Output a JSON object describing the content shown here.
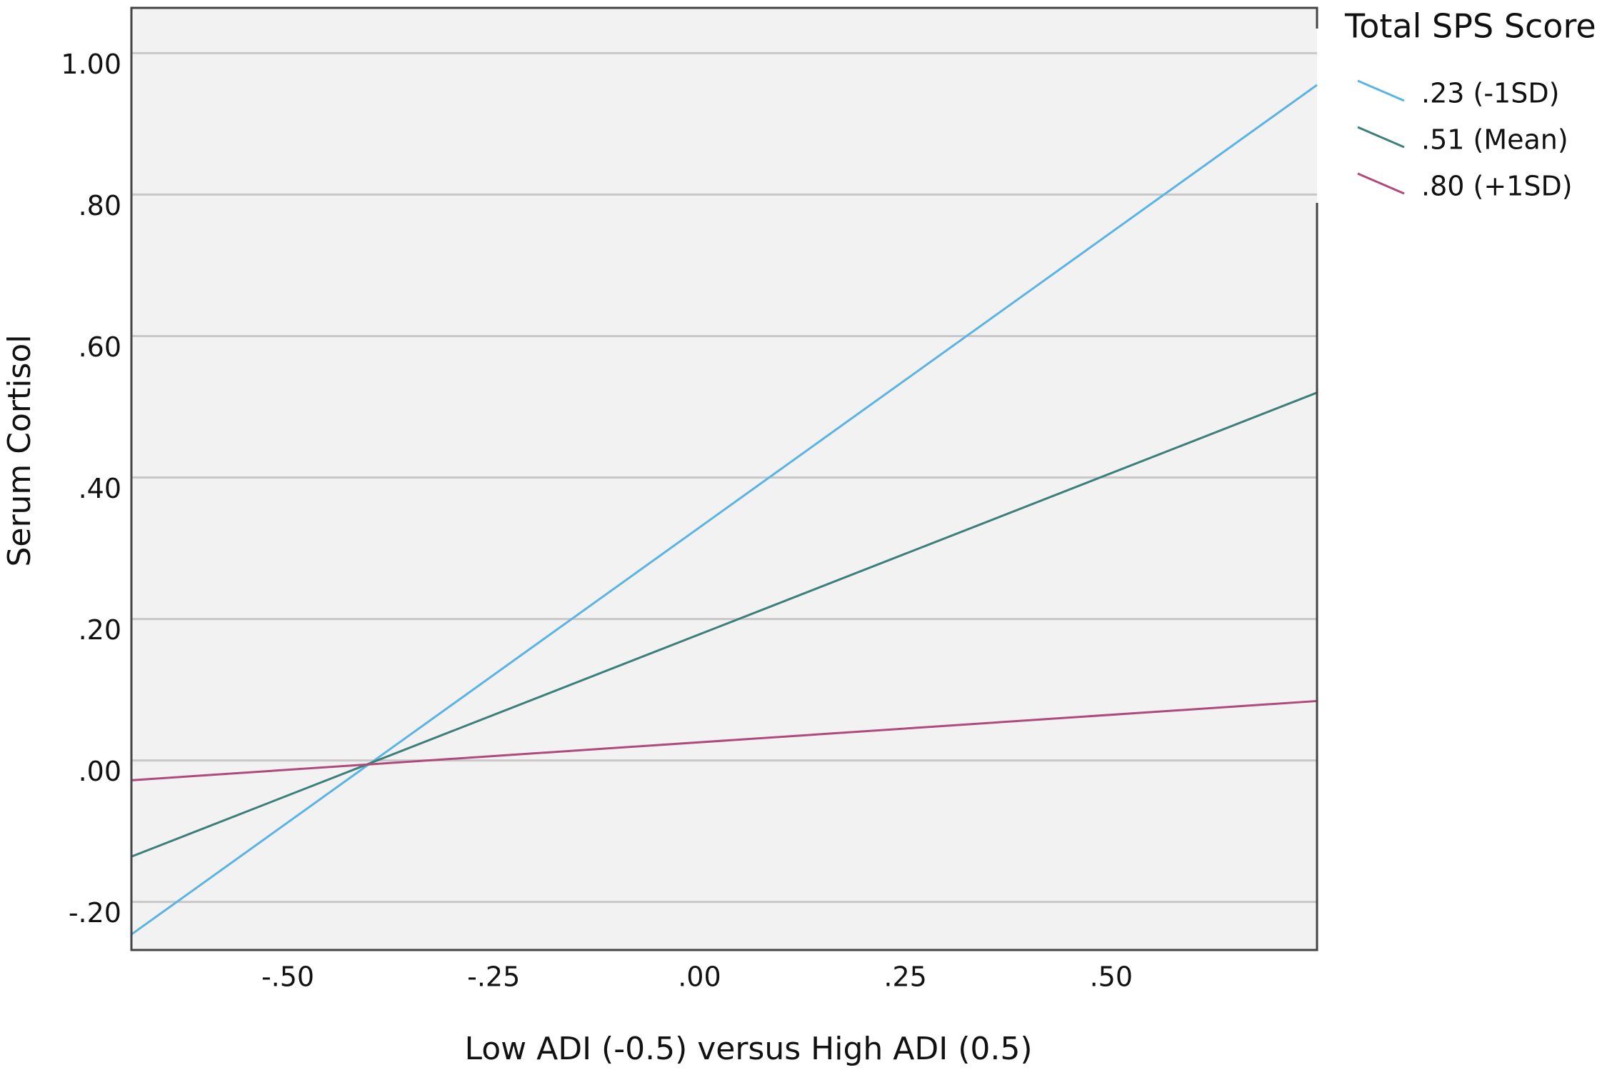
{
  "chart_data": {
    "type": "line",
    "x_label": "Low ADI (-0.5) versus High ADI (0.5)",
    "y_label": "Serum Cortisol",
    "legend_title": "Total SPS Score",
    "x": [
      -0.69,
      0.75
    ],
    "series": [
      {
        "name": ".23 (-1SD)",
        "color": "#5ab4e5",
        "values": [
          -0.246,
          0.955
        ]
      },
      {
        "name": ".51 (Mean)",
        "color": "#3d7f7a",
        "values": [
          -0.136,
          0.52
        ]
      },
      {
        "name": ".80 (+1SD)",
        "color": "#b04a7a",
        "values": [
          -0.028,
          0.084
        ]
      }
    ],
    "xlim": [
      -0.69,
      0.75
    ],
    "ylim": [
      -0.268,
      1.064
    ],
    "xticks": [
      {
        "value": -0.5,
        "label": "-.50"
      },
      {
        "value": -0.25,
        "label": "-.25"
      },
      {
        "value": 0,
        "label": ".00"
      },
      {
        "value": 0.25,
        "label": ".25"
      },
      {
        "value": 0.5,
        "label": ".50"
      }
    ],
    "yticks": [
      {
        "value": -0.2,
        "label": "-.20"
      },
      {
        "value": 0,
        "label": ".00"
      },
      {
        "value": 0.2,
        "label": ".20"
      },
      {
        "value": 0.4,
        "label": ".40"
      },
      {
        "value": 0.6,
        "label": ".60"
      },
      {
        "value": 0.8,
        "label": ".80"
      },
      {
        "value": 1,
        "label": "1.00"
      }
    ],
    "grid": true,
    "legend_position": "right"
  }
}
